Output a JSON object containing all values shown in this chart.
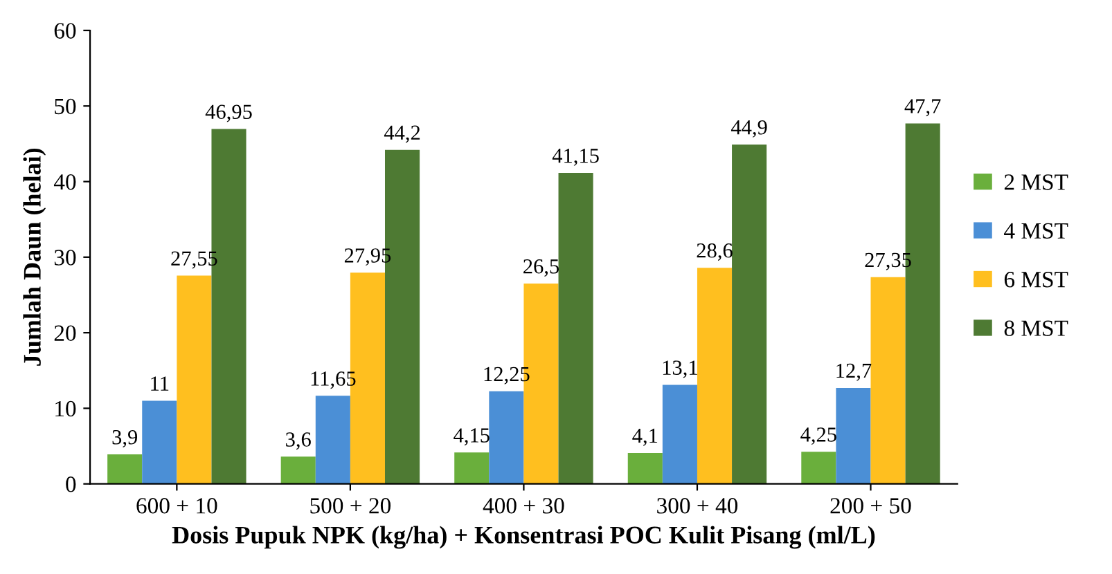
{
  "chart_data": {
    "type": "bar",
    "xlabel": "Dosis Pupuk NPK (kg/ha) + Konsentrasi POC Kulit Pisang (ml/L)",
    "ylabel": "Jumlah Daun (helai)",
    "categories": [
      "600 + 10",
      "500 + 20",
      "400 + 30",
      "300 + 40",
      "200 + 50"
    ],
    "series": [
      {
        "name": "2 MST",
        "color": "#6aaf3c",
        "values": [
          3.9,
          3.6,
          4.15,
          4.1,
          4.25
        ],
        "value_labels": [
          "3,9",
          "3,6",
          "4,15",
          "4,1",
          "4,25"
        ]
      },
      {
        "name": "4 MST",
        "color": "#4b8fd6",
        "values": [
          11,
          11.65,
          12.25,
          13.1,
          12.7
        ],
        "value_labels": [
          "11",
          "11,65",
          "12,25",
          "13,1",
          "12,7"
        ]
      },
      {
        "name": "6 MST",
        "color": "#ffbf1f",
        "values": [
          27.55,
          27.95,
          26.5,
          28.6,
          27.35
        ],
        "value_labels": [
          "27,55",
          "27,95",
          "26,5",
          "28,6",
          "27,35"
        ]
      },
      {
        "name": "8 MST",
        "color": "#4e7a33",
        "values": [
          46.95,
          44.2,
          41.15,
          44.9,
          47.7
        ],
        "value_labels": [
          "46,95",
          "44,2",
          "41,15",
          "44,9",
          "47,7"
        ]
      }
    ],
    "ylim": [
      0,
      60
    ],
    "yticks": [
      0,
      10,
      20,
      30,
      40,
      50,
      60
    ],
    "grid": false,
    "legend": "right"
  }
}
